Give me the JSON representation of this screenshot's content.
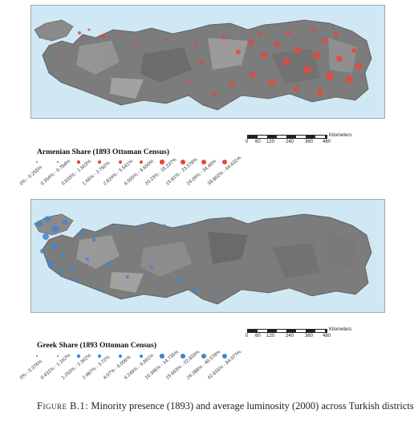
{
  "maps": [
    {
      "id": "armenian",
      "legend_title": "Armenian Share (1893 Ottoman Census)",
      "dot_color": "#e8463c",
      "legend_items": [
        "0% - 0.255%",
        "0.364% - 0.784%",
        "0.833% - 1.603%",
        "1.66% - 2.782%",
        "2.824% - 5.541%",
        "6.005% - 9.650%",
        "10.23% - 15.337%",
        "15.81% - 23.378%",
        "24.09% - 34.46%",
        "39.802% - 64.631%"
      ],
      "scale": {
        "ticks": [
          "0",
          "60",
          "120",
          "240",
          "360",
          "480"
        ],
        "unit": "Kilometers"
      }
    },
    {
      "id": "greek",
      "legend_title": "Greek Share (1893 Ottoman Census)",
      "dot_color": "#3d86d4",
      "legend_items": [
        "0% - 0.376%",
        "0.431% - 1.162%",
        "1.253% - 2.302%",
        "2.487% - 3.72%",
        "4.07% - 6.006%",
        "6.249% - 9.991%",
        "10.346% - 14.735%",
        "15.663% - 22.833%",
        "24.288% - 40.578%",
        "42.816% - 84.077%"
      ],
      "scale": {
        "ticks": [
          "0",
          "60",
          "120",
          "240",
          "360",
          "480"
        ],
        "unit": "Kilometers"
      }
    }
  ],
  "caption": {
    "label": "Figure B.1:",
    "text": "Minority presence (1893) and average luminosity (2000) across Turkish districts"
  }
}
